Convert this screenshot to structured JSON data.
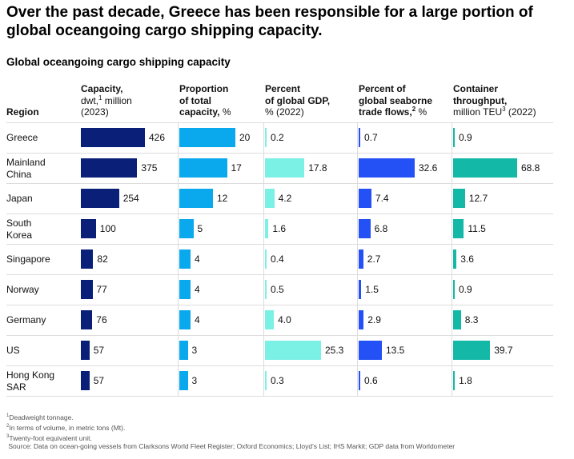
{
  "title": "Over the past decade, Greece has been responsible for a large portion of global oceangoing cargo shipping capacity.",
  "colors": {
    "capacity": "#0a1f78",
    "proportion": "#0aa8ec",
    "gdp": "#7bf0e4",
    "trade": "#2451f5",
    "container": "#14b8a6"
  },
  "chart_data": {
    "type": "bar",
    "title": "Global oceangoing cargo shipping capacity",
    "region_header": "Region",
    "categories": [
      "Greece",
      "Mainland China",
      "Japan",
      "South Korea",
      "Singapore",
      "Norway",
      "Germany",
      "US",
      "Hong Kong SAR"
    ],
    "series": [
      {
        "name": "Capacity",
        "header_bold": "Capacity,",
        "header_rest": "dwt,",
        "header_sup": "1",
        "header_rest2": " million",
        "header_line3": "(2023)",
        "values": [
          426,
          375,
          254,
          100,
          82,
          77,
          76,
          57,
          57
        ],
        "labels": [
          "426",
          "375",
          "254",
          "100",
          "82",
          "77",
          "76",
          "57",
          "57"
        ]
      },
      {
        "name": "Proportion of total capacity",
        "header_bold": "Proportion",
        "header_bold2": "of total",
        "header_bold3": "capacity,",
        "header_unit": " %",
        "values": [
          20,
          17,
          12,
          5,
          4,
          4,
          4,
          3,
          3
        ],
        "labels": [
          "20",
          "17",
          "12",
          "5",
          "4",
          "4",
          "4",
          "3",
          "3"
        ]
      },
      {
        "name": "Percent of global GDP",
        "header_bold": "Percent",
        "header_bold2": "of global GDP,",
        "header_line3": "% (2022)",
        "values": [
          0.2,
          17.8,
          4.2,
          1.6,
          0.4,
          0.5,
          4.0,
          25.3,
          0.3
        ],
        "labels": [
          "0.2",
          "17.8",
          "4.2",
          "1.6",
          "0.4",
          "0.5",
          "4.0",
          "25.3",
          "0.3"
        ]
      },
      {
        "name": "Percent of global seaborne trade flows",
        "header_bold": "Percent of",
        "header_bold2": "global seaborne",
        "header_bold3": "trade flows,",
        "header_sup": "2",
        "header_unit": " %",
        "values": [
          0.7,
          32.6,
          7.4,
          6.8,
          2.7,
          1.5,
          2.9,
          13.5,
          0.6
        ],
        "labels": [
          "0.7",
          "32.6",
          "7.4",
          "6.8",
          "2.7",
          "1.5",
          "2.9",
          "13.5",
          "0.6"
        ]
      },
      {
        "name": "Container throughput",
        "header_bold": "Container",
        "header_bold2": "throughput,",
        "header_rest": "million TEU",
        "header_sup": "3",
        "header_rest2": " (2022)",
        "values": [
          0.9,
          68.8,
          12.7,
          11.5,
          3.6,
          0.9,
          8.3,
          39.7,
          1.8
        ],
        "labels": [
          "0.9",
          "68.8",
          "12.7",
          "11.5",
          "3.6",
          "0.9",
          "8.3",
          "39.7",
          "1.8"
        ]
      }
    ]
  },
  "footnotes": [
    {
      "sup": "1",
      "text": "Deadweight tonnage."
    },
    {
      "sup": "2",
      "text": "In terms of volume, in metric tons (Mt)."
    },
    {
      "sup": "3",
      "text": "Twenty-foot equivalent unit."
    },
    {
      "sup": "",
      "text": "Source: Data on ocean-going vessels from Clarksons World Fleet Register; Oxford Economics; Lloyd’s List; IHS Markit; GDP data from Worldometer"
    }
  ]
}
